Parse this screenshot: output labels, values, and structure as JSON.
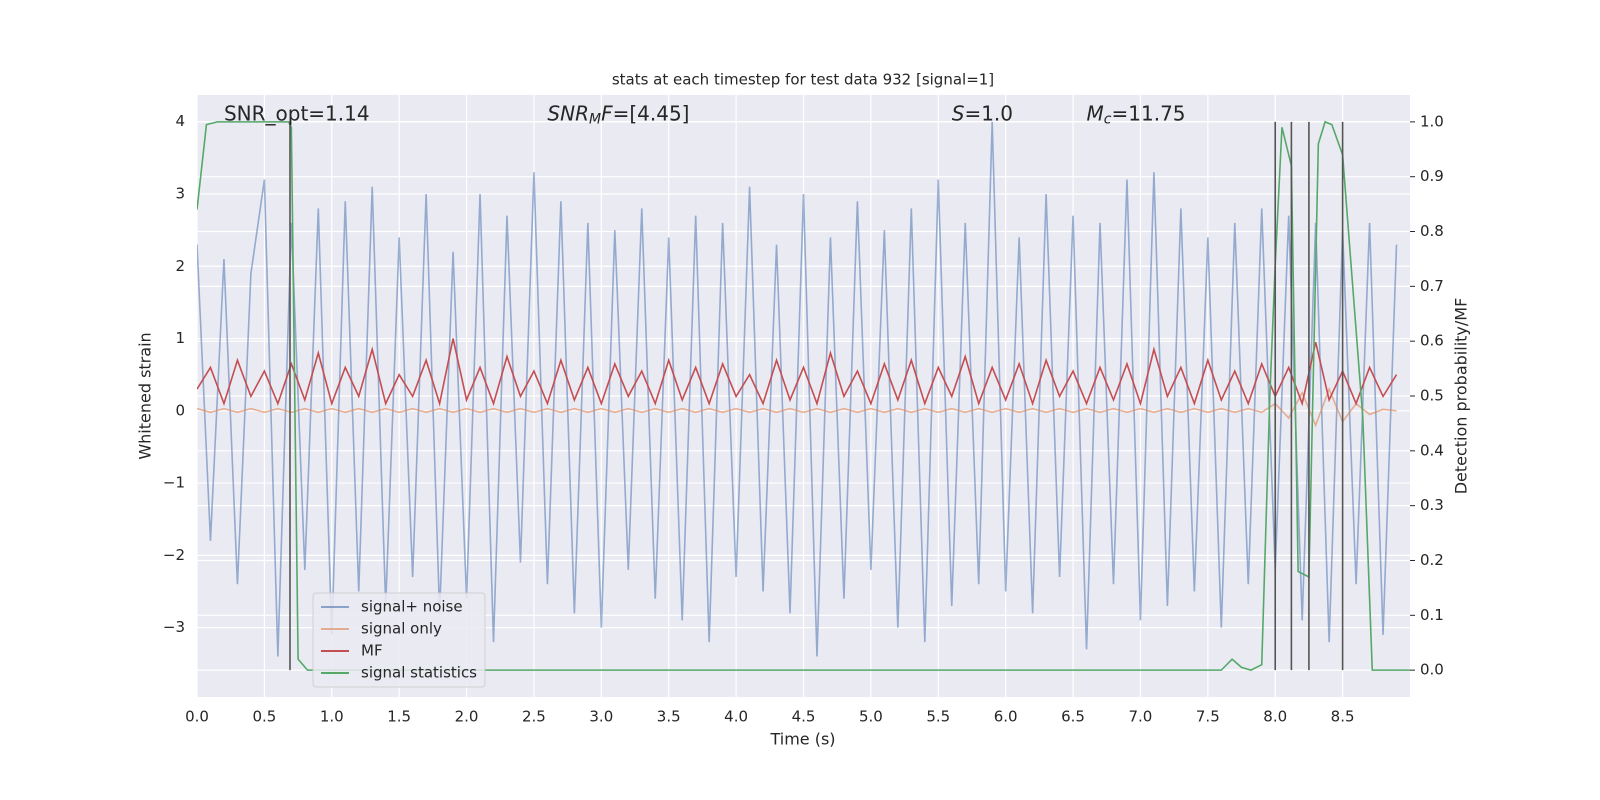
{
  "chart_data": {
    "type": "line",
    "title": "stats at each timestep for test data 932 [signal=1]",
    "xlabel": "Time (s)",
    "ylabel": "Whitened strain",
    "y2label": "Detection probability/MF",
    "xlim": [
      0,
      9
    ],
    "ylim": [
      -3.96,
      4.37
    ],
    "y2lim": [
      -0.049,
      1.049
    ],
    "xticks": [
      {
        "value": 0,
        "label": "0.0"
      },
      0.5,
      {
        "value": 1,
        "label": "1.0"
      },
      1.5,
      {
        "value": 2,
        "label": "2.0"
      },
      2.5,
      {
        "value": 3,
        "label": "3.0"
      },
      3.5,
      {
        "value": 4,
        "label": "4.0"
      },
      4.5,
      {
        "value": 5,
        "label": "5.0"
      },
      5.5,
      {
        "value": 6,
        "label": "6.0"
      },
      6.5,
      {
        "value": 7,
        "label": "7.0"
      },
      7.5,
      {
        "value": 8,
        "label": "8.0"
      },
      8.5
    ],
    "yticks": [
      {
        "value": -3,
        "label": "−3"
      },
      {
        "value": -2,
        "label": "−2"
      },
      {
        "value": -1,
        "label": "−1"
      },
      0,
      1,
      2,
      3,
      4
    ],
    "y2ticks": [
      {
        "value": 0,
        "label": "0.0"
      },
      0.1,
      0.2,
      0.3,
      0.4,
      0.5,
      0.6,
      0.7,
      0.8,
      0.9,
      {
        "value": 1,
        "label": "1.0"
      }
    ],
    "grid": true,
    "legend": "lower left",
    "x": [
      0.0,
      0.1,
      0.2,
      0.3,
      0.4,
      0.5,
      0.6,
      0.7,
      0.8,
      0.9,
      1.0,
      1.1,
      1.2,
      1.3,
      1.4,
      1.5,
      1.6,
      1.7,
      1.8,
      1.9,
      2.0,
      2.1,
      2.2,
      2.3,
      2.4,
      2.5,
      2.6,
      2.7,
      2.8,
      2.9,
      3.0,
      3.1,
      3.2,
      3.3,
      3.4,
      3.5,
      3.6,
      3.7,
      3.8,
      3.9,
      4.0,
      4.1,
      4.2,
      4.3,
      4.4,
      4.5,
      4.6,
      4.7,
      4.8,
      4.9,
      5.0,
      5.1,
      5.2,
      5.3,
      5.4,
      5.5,
      5.6,
      5.7,
      5.8,
      5.9,
      6.0,
      6.1,
      6.2,
      6.3,
      6.4,
      6.5,
      6.6,
      6.7,
      6.8,
      6.9,
      7.0,
      7.1,
      7.2,
      7.3,
      7.4,
      7.5,
      7.6,
      7.7,
      7.8,
      7.9,
      8.0,
      8.1,
      8.2,
      8.3,
      8.4,
      8.5,
      8.6,
      8.7,
      8.8,
      8.9
    ],
    "series": [
      {
        "name": "signal+ noise",
        "color": "#4c72b0",
        "values": [
          2.3,
          -1.8,
          2.1,
          -2.4,
          1.9,
          3.2,
          -3.4,
          2.6,
          -2.2,
          2.8,
          -3.1,
          2.9,
          -2.5,
          3.1,
          -2.7,
          2.4,
          -2.3,
          3.0,
          -2.8,
          2.2,
          -2.6,
          3.0,
          -3.2,
          2.7,
          -2.1,
          3.3,
          -2.4,
          2.9,
          -2.8,
          2.6,
          -3.0,
          2.5,
          -2.2,
          2.8,
          -2.6,
          2.4,
          -2.9,
          2.7,
          -3.2,
          2.6,
          -2.3,
          3.1,
          -2.5,
          2.3,
          -2.8,
          3.0,
          -3.4,
          2.4,
          -2.6,
          2.9,
          -2.2,
          2.5,
          -3.0,
          2.8,
          -3.2,
          3.2,
          -2.7,
          2.6,
          -2.4,
          4.0,
          -2.5,
          2.4,
          -2.8,
          3.0,
          -2.3,
          2.7,
          -3.3,
          2.6,
          -2.4,
          3.2,
          -2.9,
          3.3,
          -2.7,
          2.8,
          -2.5,
          2.4,
          -3.0,
          2.6,
          -2.4,
          2.8,
          -2.2,
          2.7,
          -2.9,
          2.6,
          -3.2,
          2.5,
          -2.4,
          2.6,
          -3.1,
          2.3
        ]
      },
      {
        "name": "signal only",
        "color": "#dd8452",
        "values": [
          0.03,
          -0.02,
          0.03,
          -0.02,
          0.03,
          -0.02,
          0.03,
          -0.02,
          0.03,
          -0.02,
          0.03,
          -0.02,
          0.03,
          -0.02,
          0.03,
          -0.02,
          0.03,
          -0.02,
          0.03,
          -0.02,
          0.03,
          -0.02,
          0.03,
          -0.02,
          0.03,
          -0.02,
          0.03,
          -0.02,
          0.03,
          -0.02,
          0.03,
          -0.02,
          0.03,
          -0.02,
          0.03,
          -0.02,
          0.03,
          -0.02,
          0.03,
          -0.02,
          0.03,
          -0.02,
          0.03,
          -0.02,
          0.03,
          -0.02,
          0.03,
          -0.02,
          0.03,
          -0.02,
          0.03,
          -0.02,
          0.03,
          -0.02,
          0.03,
          -0.02,
          0.03,
          -0.02,
          0.03,
          -0.02,
          0.03,
          -0.02,
          0.03,
          -0.02,
          0.03,
          -0.02,
          0.03,
          -0.02,
          0.03,
          -0.02,
          0.03,
          -0.02,
          0.03,
          -0.02,
          0.03,
          -0.02,
          0.03,
          -0.02,
          0.03,
          -0.02,
          0.1,
          -0.1,
          0.25,
          -0.2,
          0.3,
          -0.15,
          0.1,
          -0.05,
          0.02,
          0.0
        ]
      },
      {
        "name": "MF",
        "color": "#c44e52",
        "values": [
          0.3,
          0.6,
          0.1,
          0.7,
          0.2,
          0.55,
          0.1,
          0.65,
          0.15,
          0.8,
          0.1,
          0.6,
          0.2,
          0.85,
          0.1,
          0.5,
          0.2,
          0.7,
          0.1,
          1.0,
          0.15,
          0.6,
          0.1,
          0.75,
          0.2,
          0.55,
          0.1,
          0.7,
          0.15,
          0.6,
          0.1,
          0.65,
          0.2,
          0.55,
          0.1,
          0.7,
          0.15,
          0.6,
          0.1,
          0.65,
          0.2,
          0.5,
          0.1,
          0.7,
          0.15,
          0.6,
          0.1,
          0.8,
          0.2,
          0.55,
          0.1,
          0.65,
          0.15,
          0.7,
          0.1,
          0.6,
          0.2,
          0.75,
          0.1,
          0.6,
          0.15,
          0.65,
          0.1,
          0.7,
          0.2,
          0.55,
          0.1,
          0.6,
          0.15,
          0.65,
          0.1,
          0.85,
          0.2,
          0.6,
          0.1,
          0.7,
          0.15,
          0.55,
          0.1,
          0.65,
          0.2,
          0.6,
          0.1,
          0.95,
          0.15,
          0.55,
          0.1,
          0.6,
          0.2,
          0.5
        ]
      },
      {
        "name": "signal statistics",
        "color": "#55a868",
        "axis": "y2",
        "x": [
          0.0,
          0.07,
          0.15,
          0.68,
          0.7,
          0.75,
          0.82,
          7.6,
          7.68,
          7.75,
          7.82,
          7.9,
          7.96,
          8.0,
          8.05,
          8.12,
          8.17,
          8.25,
          8.32,
          8.37,
          8.42,
          8.5,
          8.65,
          8.72,
          8.8,
          9.0
        ],
        "values": [
          0.84,
          0.995,
          1.0,
          1.0,
          0.99,
          0.02,
          0.0,
          0.0,
          0.02,
          0.005,
          0.0,
          0.01,
          0.5,
          0.74,
          0.99,
          0.92,
          0.18,
          0.17,
          0.96,
          1.0,
          0.995,
          0.94,
          0.46,
          0.0,
          0.0,
          0.0
        ]
      }
    ],
    "vlines": {
      "color": "#555555",
      "axis": "y2",
      "x": [
        0.69,
        8.0,
        8.12,
        8.25,
        8.5
      ],
      "ymin": 0,
      "ymax": 1
    },
    "annotations": [
      {
        "x": 0.2,
        "y": 4.1,
        "parts": [
          {
            "text": "SNR_opt=1.14"
          }
        ]
      },
      {
        "x": 2.6,
        "y": 4.1,
        "parts": [
          {
            "text": "SNR",
            "italic": true
          },
          {
            "text": "M",
            "italic": true,
            "sub": true
          },
          {
            "text": "F",
            "italic": true
          },
          {
            "text": "=[4.45]"
          }
        ]
      },
      {
        "x": 5.6,
        "y": 4.1,
        "parts": [
          {
            "text": "S",
            "italic": true
          },
          {
            "text": "=1.0"
          }
        ]
      },
      {
        "x": 6.6,
        "y": 4.1,
        "parts": [
          {
            "text": "M",
            "italic": true
          },
          {
            "text": "c",
            "italic": true,
            "sub": true
          },
          {
            "text": "=11.75"
          }
        ]
      }
    ]
  }
}
